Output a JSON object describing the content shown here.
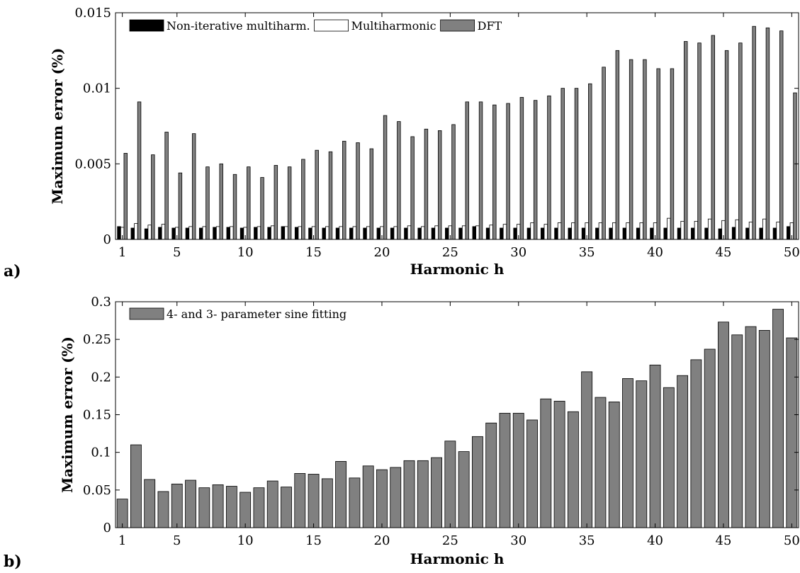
{
  "chart_data": [
    {
      "panel_label": "a)",
      "type": "bar",
      "xlabel": "Harmonic h",
      "ylabel": "Maximum error (%)",
      "x": [
        1,
        2,
        3,
        4,
        5,
        6,
        7,
        8,
        9,
        10,
        11,
        12,
        13,
        14,
        15,
        16,
        17,
        18,
        19,
        20,
        21,
        22,
        23,
        24,
        25,
        26,
        27,
        28,
        29,
        30,
        31,
        32,
        33,
        34,
        35,
        36,
        37,
        38,
        39,
        40,
        41,
        42,
        43,
        44,
        45,
        46,
        47,
        48,
        49,
        50
      ],
      "xticks": [
        1,
        5,
        10,
        15,
        20,
        25,
        30,
        35,
        40,
        45,
        50
      ],
      "yticks": [
        0,
        0.005,
        0.01,
        0.015
      ],
      "ytick_labels": [
        "0",
        "0.005",
        "0.01",
        "0.015"
      ],
      "ylim": [
        0,
        0.015
      ],
      "legend": "top-left, horizontal",
      "series": [
        {
          "name": "Non-iterative multiharm.",
          "color": "#000000",
          "values": [
            0.00085,
            0.00075,
            0.0007,
            0.0008,
            0.00075,
            0.00075,
            0.00075,
            0.0008,
            0.0008,
            0.00075,
            0.0008,
            0.0008,
            0.00085,
            0.0008,
            0.00075,
            0.00075,
            0.00075,
            0.00075,
            0.00075,
            0.00075,
            0.00075,
            0.00075,
            0.00075,
            0.00075,
            0.00075,
            0.00075,
            0.00085,
            0.00075,
            0.00075,
            0.00075,
            0.00075,
            0.00075,
            0.00075,
            0.00075,
            0.00075,
            0.00075,
            0.00075,
            0.00075,
            0.00075,
            0.00075,
            0.00075,
            0.00075,
            0.00075,
            0.00075,
            0.0007,
            0.0008,
            0.00075,
            0.00075,
            0.00075,
            0.00085
          ]
        },
        {
          "name": "Multiharmonic",
          "color": "#ffffff",
          "values": [
            0.0008,
            0.00105,
            0.00095,
            0.001,
            0.0008,
            0.00085,
            0.00085,
            0.00085,
            0.00085,
            0.0008,
            0.00085,
            0.0009,
            0.00085,
            0.00085,
            0.00085,
            0.00085,
            0.00085,
            0.00085,
            0.00085,
            0.00085,
            0.00085,
            0.0009,
            0.00085,
            0.0009,
            0.0009,
            0.0009,
            0.0009,
            0.00095,
            0.001,
            0.001,
            0.0011,
            0.001,
            0.0011,
            0.0011,
            0.0011,
            0.0011,
            0.0011,
            0.0011,
            0.0011,
            0.0011,
            0.0014,
            0.0012,
            0.0012,
            0.00135,
            0.00125,
            0.0013,
            0.00115,
            0.00135,
            0.00115,
            0.0011
          ]
        },
        {
          "name": "DFT",
          "color": "#808080",
          "values": [
            0.0057,
            0.0091,
            0.0056,
            0.0071,
            0.0044,
            0.007,
            0.0048,
            0.005,
            0.0043,
            0.0048,
            0.0041,
            0.0049,
            0.0048,
            0.0053,
            0.0059,
            0.0058,
            0.0065,
            0.0064,
            0.006,
            0.0082,
            0.0078,
            0.0068,
            0.0073,
            0.0072,
            0.0076,
            0.0091,
            0.0091,
            0.0089,
            0.009,
            0.0094,
            0.0092,
            0.0095,
            0.01,
            0.01,
            0.0103,
            0.0114,
            0.0125,
            0.0119,
            0.0119,
            0.0113,
            0.0113,
            0.0131,
            0.013,
            0.0135,
            0.0125,
            0.013,
            0.0141,
            0.014,
            0.0138,
            0.0097
          ]
        }
      ]
    },
    {
      "panel_label": "b)",
      "type": "bar",
      "xlabel": "Harmonic h",
      "ylabel": "Maximum error (%)",
      "x": [
        1,
        2,
        3,
        4,
        5,
        6,
        7,
        8,
        9,
        10,
        11,
        12,
        13,
        14,
        15,
        16,
        17,
        18,
        19,
        20,
        21,
        22,
        23,
        24,
        25,
        26,
        27,
        28,
        29,
        30,
        31,
        32,
        33,
        34,
        35,
        36,
        37,
        38,
        39,
        40,
        41,
        42,
        43,
        44,
        45,
        46,
        47,
        48,
        49,
        50
      ],
      "xticks": [
        1,
        5,
        10,
        15,
        20,
        25,
        30,
        35,
        40,
        45,
        50
      ],
      "yticks": [
        0,
        0.05,
        0.1,
        0.15,
        0.2,
        0.25,
        0.3
      ],
      "ytick_labels": [
        "0",
        "0.05",
        "0.1",
        "0.15",
        "0.2",
        "0.25",
        "0.3"
      ],
      "ylim": [
        0,
        0.3
      ],
      "legend": "top-left",
      "series": [
        {
          "name": "4- and 3- parameter sine fitting",
          "color": "#808080",
          "values": [
            0.038,
            0.11,
            0.064,
            0.048,
            0.058,
            0.063,
            0.053,
            0.057,
            0.055,
            0.047,
            0.053,
            0.062,
            0.054,
            0.072,
            0.071,
            0.065,
            0.088,
            0.066,
            0.082,
            0.077,
            0.08,
            0.089,
            0.089,
            0.093,
            0.115,
            0.101,
            0.121,
            0.139,
            0.152,
            0.152,
            0.143,
            0.171,
            0.168,
            0.154,
            0.207,
            0.173,
            0.167,
            0.198,
            0.195,
            0.216,
            0.186,
            0.202,
            0.223,
            0.237,
            0.273,
            0.256,
            0.267,
            0.262,
            0.29,
            0.252
          ]
        }
      ]
    }
  ]
}
